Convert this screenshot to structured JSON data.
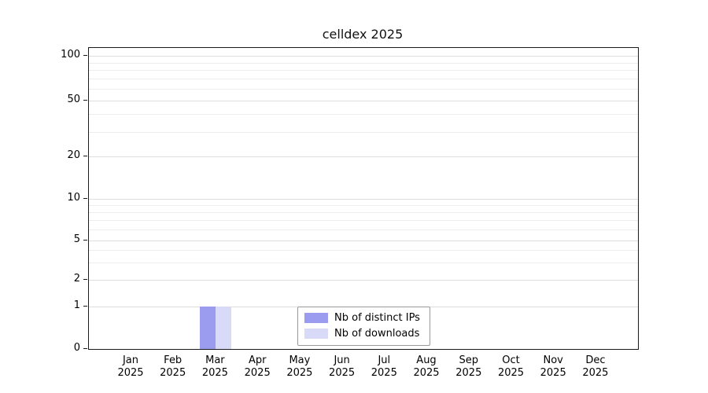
{
  "chart_data": {
    "type": "bar",
    "title": "celldex 2025",
    "categories": [
      {
        "month": "Jan",
        "year": "2025"
      },
      {
        "month": "Feb",
        "year": "2025"
      },
      {
        "month": "Mar",
        "year": "2025"
      },
      {
        "month": "Apr",
        "year": "2025"
      },
      {
        "month": "May",
        "year": "2025"
      },
      {
        "month": "Jun",
        "year": "2025"
      },
      {
        "month": "Jul",
        "year": "2025"
      },
      {
        "month": "Aug",
        "year": "2025"
      },
      {
        "month": "Sep",
        "year": "2025"
      },
      {
        "month": "Oct",
        "year": "2025"
      },
      {
        "month": "Nov",
        "year": "2025"
      },
      {
        "month": "Dec",
        "year": "2025"
      }
    ],
    "series": [
      {
        "name": "Nb of distinct IPs",
        "color": "#9b9bef",
        "values": [
          0,
          0,
          1,
          0,
          0,
          0,
          0,
          0,
          0,
          0,
          0,
          0
        ]
      },
      {
        "name": "Nb of downloads",
        "color": "#d9d9f8",
        "values": [
          0,
          0,
          1,
          0,
          0,
          0,
          0,
          0,
          0,
          0,
          0,
          0
        ]
      }
    ],
    "yticks": [
      0,
      1,
      2,
      5,
      10,
      20,
      50,
      100
    ],
    "ylim": [
      0,
      100
    ],
    "xlabel": "",
    "ylabel": "",
    "y_scale": "log above 1, linear 0-1",
    "grid": "horizontal faint gridlines (log minor lines)",
    "legend_position": "inside, bottom center"
  }
}
